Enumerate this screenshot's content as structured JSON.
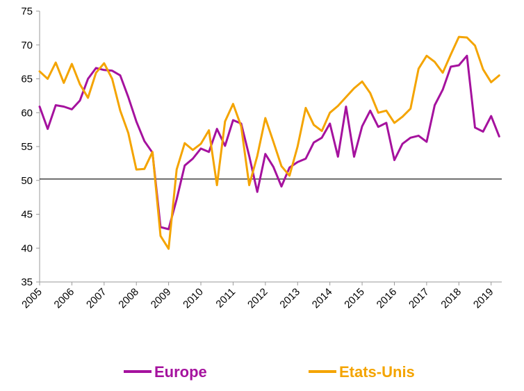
{
  "chart_data": {
    "type": "line",
    "title": "",
    "xlabel": "",
    "ylabel": "",
    "x_ticks": [
      "2005",
      "2006",
      "2007",
      "2008",
      "2009",
      "2010",
      "2011",
      "2012",
      "2013",
      "2014",
      "2015",
      "2016",
      "2017",
      "2018",
      "2019"
    ],
    "y_ticks": [
      35,
      40,
      45,
      50,
      55,
      60,
      65,
      70,
      75
    ],
    "xlim": [
      2005,
      2019.33
    ],
    "ylim": [
      35,
      75
    ],
    "grid": false,
    "reference_line": {
      "y": 50.2
    },
    "legend_position": "bottom",
    "series": [
      {
        "name": "Europe",
        "color": "#a5129e",
        "points": [
          [
            2005.0,
            60.9
          ],
          [
            2005.25,
            57.6
          ],
          [
            2005.5,
            61.1
          ],
          [
            2005.75,
            60.9
          ],
          [
            2006.0,
            60.5
          ],
          [
            2006.25,
            61.8
          ],
          [
            2006.5,
            65.0
          ],
          [
            2006.75,
            66.6
          ],
          [
            2007.0,
            66.3
          ],
          [
            2007.25,
            66.2
          ],
          [
            2007.5,
            65.5
          ],
          [
            2007.75,
            62.3
          ],
          [
            2008.0,
            58.7
          ],
          [
            2008.25,
            55.8
          ],
          [
            2008.5,
            54.1
          ],
          [
            2008.75,
            43.1
          ],
          [
            2009.0,
            42.8
          ],
          [
            2009.25,
            47.2
          ],
          [
            2009.5,
            52.2
          ],
          [
            2009.75,
            53.2
          ],
          [
            2010.0,
            54.7
          ],
          [
            2010.25,
            54.2
          ],
          [
            2010.5,
            57.6
          ],
          [
            2010.75,
            55.1
          ],
          [
            2011.0,
            58.9
          ],
          [
            2011.25,
            58.4
          ],
          [
            2011.5,
            53.6
          ],
          [
            2011.75,
            48.3
          ],
          [
            2012.0,
            53.9
          ],
          [
            2012.25,
            52.0
          ],
          [
            2012.5,
            49.1
          ],
          [
            2012.75,
            51.9
          ],
          [
            2013.0,
            52.7
          ],
          [
            2013.25,
            53.2
          ],
          [
            2013.5,
            55.6
          ],
          [
            2013.75,
            56.3
          ],
          [
            2014.0,
            58.4
          ],
          [
            2014.25,
            53.5
          ],
          [
            2014.5,
            60.9
          ],
          [
            2014.75,
            53.5
          ],
          [
            2015.0,
            58.0
          ],
          [
            2015.25,
            60.3
          ],
          [
            2015.5,
            57.9
          ],
          [
            2015.75,
            58.5
          ],
          [
            2016.0,
            53.0
          ],
          [
            2016.25,
            55.4
          ],
          [
            2016.5,
            56.3
          ],
          [
            2016.75,
            56.6
          ],
          [
            2017.0,
            55.7
          ],
          [
            2017.25,
            61.1
          ],
          [
            2017.5,
            63.4
          ],
          [
            2017.75,
            66.8
          ],
          [
            2018.0,
            67.0
          ],
          [
            2018.25,
            68.4
          ],
          [
            2018.5,
            57.8
          ],
          [
            2018.75,
            57.2
          ],
          [
            2019.0,
            59.5
          ],
          [
            2019.25,
            56.5
          ]
        ]
      },
      {
        "name": "Etats-Unis",
        "color": "#f4a400",
        "points": [
          [
            2005.0,
            66.1
          ],
          [
            2005.25,
            65.0
          ],
          [
            2005.5,
            67.4
          ],
          [
            2005.75,
            64.4
          ],
          [
            2006.0,
            67.2
          ],
          [
            2006.25,
            64.2
          ],
          [
            2006.5,
            62.2
          ],
          [
            2006.75,
            65.9
          ],
          [
            2007.0,
            67.3
          ],
          [
            2007.25,
            65.0
          ],
          [
            2007.5,
            60.3
          ],
          [
            2007.75,
            57.0
          ],
          [
            2008.0,
            51.6
          ],
          [
            2008.25,
            51.7
          ],
          [
            2008.5,
            54.2
          ],
          [
            2008.75,
            41.8
          ],
          [
            2009.0,
            39.9
          ],
          [
            2009.25,
            51.6
          ],
          [
            2009.5,
            55.5
          ],
          [
            2009.75,
            54.5
          ],
          [
            2010.0,
            55.4
          ],
          [
            2010.25,
            57.4
          ],
          [
            2010.5,
            49.3
          ],
          [
            2010.75,
            58.7
          ],
          [
            2011.0,
            61.3
          ],
          [
            2011.25,
            58.0
          ],
          [
            2011.5,
            49.3
          ],
          [
            2011.75,
            53.6
          ],
          [
            2012.0,
            59.2
          ],
          [
            2012.25,
            55.7
          ],
          [
            2012.5,
            52.1
          ],
          [
            2012.75,
            50.7
          ],
          [
            2013.0,
            55.0
          ],
          [
            2013.25,
            60.7
          ],
          [
            2013.5,
            58.2
          ],
          [
            2013.75,
            57.3
          ],
          [
            2014.0,
            60.0
          ],
          [
            2014.25,
            61.0
          ],
          [
            2014.5,
            62.3
          ],
          [
            2014.75,
            63.6
          ],
          [
            2015.0,
            64.6
          ],
          [
            2015.25,
            62.9
          ],
          [
            2015.5,
            60.0
          ],
          [
            2015.75,
            60.3
          ],
          [
            2016.0,
            58.5
          ],
          [
            2016.25,
            59.4
          ],
          [
            2016.5,
            60.6
          ],
          [
            2016.75,
            66.5
          ],
          [
            2017.0,
            68.4
          ],
          [
            2017.25,
            67.5
          ],
          [
            2017.5,
            65.9
          ],
          [
            2017.75,
            68.6
          ],
          [
            2018.0,
            71.2
          ],
          [
            2018.25,
            71.1
          ],
          [
            2018.5,
            69.9
          ],
          [
            2018.75,
            66.4
          ],
          [
            2019.0,
            64.5
          ],
          [
            2019.25,
            65.5
          ]
        ]
      }
    ]
  },
  "legend": {
    "items": [
      {
        "label": "Europe",
        "color": "#a5129e"
      },
      {
        "label": "Etats-Unis",
        "color": "#f4a400"
      }
    ]
  }
}
